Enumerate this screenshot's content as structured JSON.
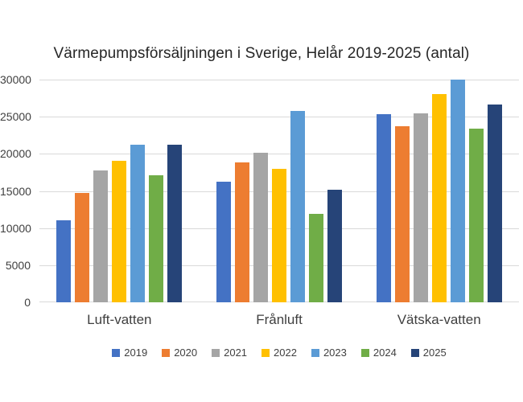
{
  "colors": {
    "background": "#FFFFFF",
    "gridline": "#D9D9D9",
    "axis_text": "#3F3F3F",
    "title_text": "#262626"
  },
  "chart_data": {
    "type": "bar",
    "title": "Värmepumpsförsäljningen i Sverige, Helår 2019-2025 (antal)",
    "xlabel": "",
    "ylabel": "",
    "categories": [
      "Luft-vatten",
      "Frånluft",
      "Vätska-vatten"
    ],
    "series": [
      {
        "name": "2019",
        "color": "#4472C4",
        "values": [
          11000,
          16300,
          25300
        ]
      },
      {
        "name": "2020",
        "color": "#ED7D31",
        "values": [
          14700,
          18900,
          23700
        ]
      },
      {
        "name": "2021",
        "color": "#A5A5A5",
        "values": [
          17800,
          20100,
          25500
        ]
      },
      {
        "name": "2022",
        "color": "#FFC000",
        "values": [
          19100,
          18000,
          28100
        ]
      },
      {
        "name": "2023",
        "color": "#5B9BD5",
        "values": [
          21200,
          25800,
          30000
        ]
      },
      {
        "name": "2024",
        "color": "#70AD47",
        "values": [
          17100,
          11900,
          23400
        ]
      },
      {
        "name": "2025",
        "color": "#264478",
        "values": [
          21200,
          15200,
          26700
        ]
      }
    ],
    "ylim": [
      0,
      30000
    ],
    "yticks": [
      0,
      5000,
      10000,
      15000,
      20000,
      25000,
      30000
    ],
    "ytick_labels": [
      "0",
      "5000",
      "10000",
      "15000",
      "20000",
      "25000",
      "30000"
    ],
    "grid": true,
    "legend_position": "bottom"
  }
}
